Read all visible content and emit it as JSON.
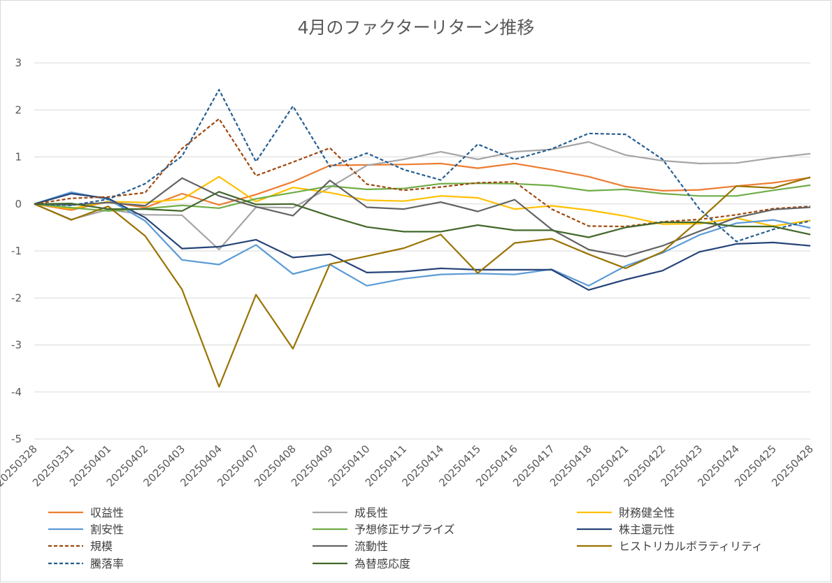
{
  "chart_data": {
    "type": "line",
    "title": "4月のファクターリターン推移",
    "xlabel": "",
    "ylabel": "",
    "ylim": [
      -5,
      3
    ],
    "yticks": [
      3,
      2,
      1,
      0,
      -1,
      -2,
      -3,
      -4,
      -5
    ],
    "grid": true,
    "legend_position": "bottom",
    "categories": [
      "20250328",
      "20250331",
      "20250401",
      "20250402",
      "20250403",
      "20250404",
      "20250407",
      "20250408",
      "20250409",
      "20250410",
      "20250411",
      "20250414",
      "20250415",
      "20250416",
      "20250417",
      "20250418",
      "20250421",
      "20250422",
      "20250423",
      "20250424",
      "20250425",
      "20250428"
    ],
    "series": [
      {
        "name": "収益性",
        "color": "#ed7d31",
        "dash": false,
        "values": [
          0,
          -0.13,
          0.05,
          -0.08,
          0.22,
          -0.02,
          0.2,
          0.47,
          0.82,
          0.83,
          0.84,
          0.86,
          0.76,
          0.86,
          0.73,
          0.58,
          0.37,
          0.28,
          0.3,
          0.38,
          0.45,
          0.56
        ]
      },
      {
        "name": "成長性",
        "color": "#a5a5a5",
        "dash": false,
        "values": [
          0,
          -0.33,
          -0.12,
          -0.23,
          -0.24,
          -0.97,
          -0.07,
          -0.08,
          0.35,
          0.82,
          0.95,
          1.11,
          0.95,
          1.11,
          1.16,
          1.32,
          1.04,
          0.92,
          0.86,
          0.87,
          0.98,
          1.07
        ]
      },
      {
        "name": "財務健全性",
        "color": "#ffc000",
        "dash": false,
        "values": [
          0,
          -0.1,
          0.05,
          0.03,
          0.1,
          0.58,
          0.05,
          0.35,
          0.24,
          0.08,
          0.06,
          0.17,
          0.13,
          -0.11,
          -0.04,
          -0.13,
          -0.26,
          -0.43,
          -0.42,
          -0.3,
          -0.47,
          -0.35
        ]
      },
      {
        "name": "割安性",
        "color": "#5b9bd5",
        "dash": false,
        "values": [
          0,
          0.25,
          0.1,
          -0.36,
          -1.19,
          -1.29,
          -0.87,
          -1.49,
          -1.29,
          -1.74,
          -1.59,
          -1.5,
          -1.48,
          -1.5,
          -1.39,
          -1.74,
          -1.32,
          -1.04,
          -0.66,
          -0.41,
          -0.34,
          -0.51
        ]
      },
      {
        "name": "予想修正サプライズ",
        "color": "#70ad47",
        "dash": false,
        "values": [
          0,
          -0.08,
          -0.15,
          -0.1,
          -0.03,
          -0.09,
          0.11,
          0.24,
          0.38,
          0.31,
          0.33,
          0.43,
          0.44,
          0.43,
          0.39,
          0.28,
          0.31,
          0.22,
          0.17,
          0.17,
          0.29,
          0.4
        ]
      },
      {
        "name": "株主還元性",
        "color": "#264478",
        "dash": false,
        "values": [
          0,
          0.22,
          0.12,
          -0.29,
          -0.95,
          -0.91,
          -0.76,
          -1.14,
          -1.07,
          -1.46,
          -1.44,
          -1.37,
          -1.4,
          -1.4,
          -1.4,
          -1.83,
          -1.61,
          -1.42,
          -1.02,
          -0.85,
          -0.82,
          -0.89
        ]
      },
      {
        "name": "規模",
        "color": "#9e480e",
        "dash": true,
        "values": [
          0,
          0.12,
          0.15,
          0.24,
          1.18,
          1.81,
          0.6,
          0.89,
          1.19,
          0.42,
          0.29,
          0.36,
          0.45,
          0.47,
          -0.11,
          -0.47,
          -0.48,
          -0.38,
          -0.33,
          -0.23,
          -0.1,
          -0.05
        ]
      },
      {
        "name": "流動性",
        "color": "#636363",
        "dash": false,
        "values": [
          0,
          -0.02,
          0.03,
          -0.04,
          0.55,
          0.17,
          -0.06,
          -0.25,
          0.5,
          -0.07,
          -0.11,
          0.04,
          -0.16,
          0.09,
          -0.54,
          -0.97,
          -1.12,
          -0.89,
          -0.58,
          -0.29,
          -0.12,
          -0.07
        ]
      },
      {
        "name": "ヒストリカルボラティリティ",
        "color": "#997300",
        "dash": false,
        "values": [
          0,
          -0.34,
          -0.05,
          -0.68,
          -1.82,
          -3.89,
          -1.93,
          -3.08,
          -1.28,
          -1.11,
          -0.94,
          -0.65,
          -1.47,
          -0.83,
          -0.74,
          -1.07,
          -1.37,
          -1.02,
          -0.34,
          0.38,
          0.34,
          0.57
        ]
      },
      {
        "name": "騰落率",
        "color": "#255e91",
        "dash": true,
        "values": [
          0,
          -0.03,
          0.1,
          0.43,
          1.02,
          2.43,
          0.9,
          2.08,
          0.79,
          1.08,
          0.73,
          0.51,
          1.27,
          0.95,
          1.17,
          1.5,
          1.48,
          0.95,
          -0.11,
          -0.8,
          -0.54,
          -0.36
        ]
      },
      {
        "name": "為替感応度",
        "color": "#43682b",
        "dash": false,
        "values": [
          0,
          0.01,
          -0.11,
          -0.11,
          -0.15,
          0.26,
          -0.01,
          0,
          -0.26,
          -0.49,
          -0.59,
          -0.59,
          -0.45,
          -0.56,
          -0.56,
          -0.71,
          -0.5,
          -0.39,
          -0.39,
          -0.48,
          -0.48,
          -0.65
        ]
      }
    ]
  }
}
